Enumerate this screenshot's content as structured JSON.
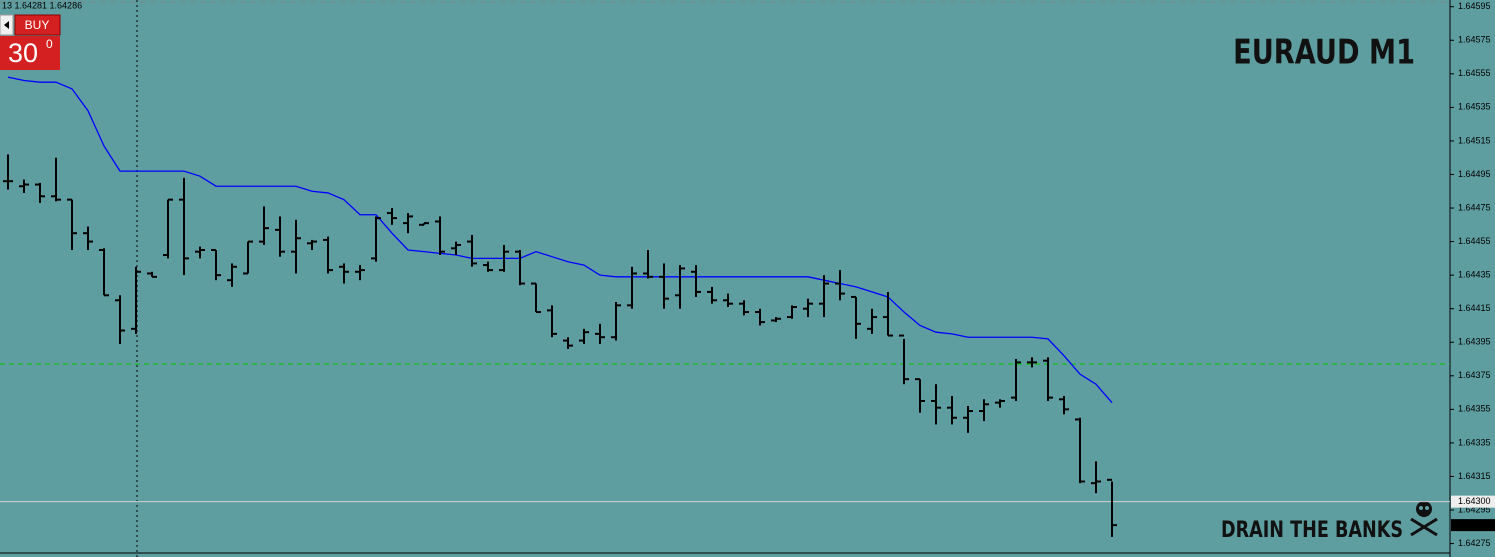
{
  "chart_data": {
    "type": "ohlc",
    "title": "EURAUD M1",
    "footer": "DRAIN THE BANKS",
    "background": "#5f9ea0",
    "bar_color": "#000000",
    "ylim": [
      1.64267,
      1.64599
    ],
    "yticks": [
      1.64595,
      1.64575,
      1.64555,
      1.64535,
      1.64515,
      1.64495,
      1.64475,
      1.64455,
      1.64435,
      1.64415,
      1.64395,
      1.64375,
      1.64355,
      1.64335,
      1.64315,
      1.64295,
      1.64275
    ],
    "open": [
      1.64491,
      1.64488,
      1.64489,
      1.64482,
      1.6448,
      1.6446,
      1.6445,
      1.6442,
      1.64403,
      1.64436,
      1.64447,
      1.6448,
      1.64449,
      1.6445,
      1.64432,
      1.64436,
      1.64455,
      1.64462,
      1.64449,
      1.64454,
      1.64456,
      1.6444,
      1.64437,
      1.64445,
      1.64472,
      1.64466,
      1.64465,
      1.64467,
      1.64451,
      1.64455,
      1.64441,
      1.64438,
      1.64449,
      1.6443,
      1.64414,
      1.64396,
      1.64396,
      1.644,
      1.64398,
      1.64417,
      1.64436,
      1.64434,
      1.64423,
      1.64437,
      1.64425,
      1.6442,
      1.64418,
      1.64413,
      1.64408,
      1.6441,
      1.64415,
      1.64418,
      1.6443,
      1.64422,
      1.64403,
      1.6441,
      1.64399,
      1.64373,
      1.6436,
      1.64356,
      1.6435,
      1.64354,
      1.64359,
      1.64362,
      1.64383,
      1.64384,
      1.64361,
      1.64349,
      1.64311,
      1.64313
    ],
    "high": [
      1.64507,
      1.64492,
      1.6449,
      1.64505,
      1.6448,
      1.64464,
      1.64451,
      1.64423,
      1.6444,
      1.64437,
      1.6448,
      1.64493,
      1.64452,
      1.6445,
      1.64442,
      1.64455,
      1.64476,
      1.6447,
      1.64468,
      1.64456,
      1.64458,
      1.64442,
      1.64441,
      1.6447,
      1.64475,
      1.64472,
      1.64466,
      1.6447,
      1.64455,
      1.64459,
      1.64443,
      1.64453,
      1.6445,
      1.6443,
      1.64417,
      1.64398,
      1.64403,
      1.64406,
      1.64419,
      1.6444,
      1.6445,
      1.64442,
      1.64441,
      1.64441,
      1.64428,
      1.64424,
      1.6442,
      1.64415,
      1.6441,
      1.64417,
      1.64421,
      1.64435,
      1.64438,
      1.64422,
      1.64415,
      1.64425,
      1.64397,
      1.64373,
      1.6437,
      1.64363,
      1.64357,
      1.64361,
      1.64361,
      1.64385,
      1.64386,
      1.64386,
      1.64363,
      1.6435,
      1.64324,
      1.64312
    ],
    "low": [
      1.64486,
      1.64484,
      1.64478,
      1.64479,
      1.6445,
      1.6445,
      1.64423,
      1.64394,
      1.644,
      1.64434,
      1.64445,
      1.64435,
      1.64445,
      1.64432,
      1.64428,
      1.64436,
      1.64453,
      1.64446,
      1.64436,
      1.6445,
      1.64436,
      1.6443,
      1.64432,
      1.64443,
      1.64465,
      1.6446,
      1.64465,
      1.64447,
      1.64447,
      1.6444,
      1.64437,
      1.64437,
      1.64429,
      1.64413,
      1.64398,
      1.64391,
      1.64394,
      1.64394,
      1.64396,
      1.64415,
      1.64433,
      1.64415,
      1.64415,
      1.64422,
      1.64418,
      1.64416,
      1.64411,
      1.64405,
      1.64407,
      1.64409,
      1.6441,
      1.6441,
      1.6442,
      1.64397,
      1.644,
      1.64399,
      1.6437,
      1.64353,
      1.64346,
      1.64346,
      1.64341,
      1.64348,
      1.64356,
      1.6436,
      1.6438,
      1.6436,
      1.64352,
      1.64311,
      1.64305,
      1.64279
    ],
    "close": [
      1.64491,
      1.64489,
      1.64482,
      1.6448,
      1.6446,
      1.64455,
      1.64423,
      1.64402,
      1.64437,
      1.64434,
      1.6448,
      1.64445,
      1.6445,
      1.64435,
      1.6444,
      1.64455,
      1.64463,
      1.64449,
      1.64457,
      1.64455,
      1.64438,
      1.64437,
      1.64438,
      1.64469,
      1.64469,
      1.6447,
      1.64466,
      1.64449,
      1.64453,
      1.64442,
      1.64438,
      1.64449,
      1.6443,
      1.64413,
      1.644,
      1.64393,
      1.64401,
      1.64398,
      1.64417,
      1.64436,
      1.64434,
      1.64421,
      1.64439,
      1.64425,
      1.6442,
      1.64418,
      1.64413,
      1.64407,
      1.64409,
      1.64416,
      1.64418,
      1.6443,
      1.64424,
      1.64406,
      1.6441,
      1.64399,
      1.64373,
      1.6436,
      1.64356,
      1.6435,
      1.64354,
      1.64358,
      1.6436,
      1.64383,
      1.64383,
      1.64362,
      1.64355,
      1.64312,
      1.64312,
      1.64286
    ],
    "lines": [
      {
        "color": "#0000ff",
        "values": [
          1.64553,
          1.64551,
          1.6455,
          1.6455,
          1.64546,
          1.64533,
          1.64512,
          1.64497,
          1.64497,
          1.64497,
          1.64497,
          1.64497,
          1.64494,
          1.64488,
          1.64488,
          1.64488,
          1.64488,
          1.64488,
          1.64488,
          1.64485,
          1.64484,
          1.6448,
          1.64471,
          1.64471,
          1.6446,
          1.6445,
          1.64449,
          1.64448,
          1.64447,
          1.64445,
          1.64445,
          1.64445,
          1.64445,
          1.64449,
          1.64446,
          1.64443,
          1.64441,
          1.64435,
          1.64434,
          1.64434,
          1.64434,
          1.64434,
          1.64434,
          1.64434,
          1.64434,
          1.64434,
          1.64434,
          1.64434,
          1.64434,
          1.64434,
          1.64434,
          1.64432,
          1.6443,
          1.64428,
          1.64425,
          1.64422,
          1.64413,
          1.64405,
          1.64401,
          1.644,
          1.64398,
          1.64398,
          1.64398,
          1.64398,
          1.64398,
          1.64397,
          1.64387,
          1.64376,
          1.6437,
          1.64359
        ]
      }
    ],
    "level_lines": [
      {
        "value": 1.64382,
        "color": "#00c800"
      },
      {
        "value": 1.643,
        "label": "1.64300",
        "color": "#d0d0d0"
      }
    ],
    "current_price": 1.64286,
    "trade_panel": {
      "quote": "13 1.64281 1.64286",
      "button": "BUY",
      "price": "30",
      "superscript": "0"
    }
  }
}
